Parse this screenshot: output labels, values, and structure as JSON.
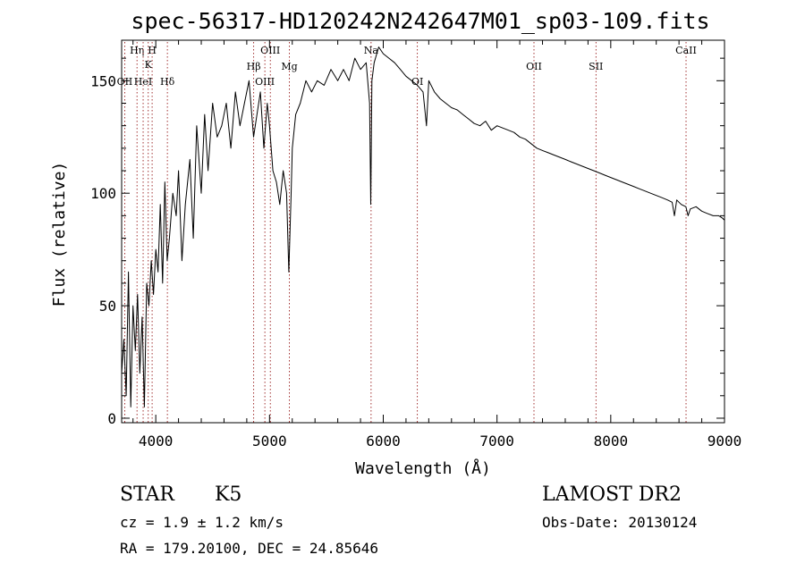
{
  "chart_data": {
    "type": "line",
    "title": "spec-56317-HD120242N242647M01_sp03-109.fits",
    "xlabel": "Wavelength (Å)",
    "ylabel": "Flux (relative)",
    "xlim": [
      3700,
      9000
    ],
    "ylim": [
      -2,
      168
    ],
    "x_ticks": [
      4000,
      5000,
      6000,
      7000,
      8000,
      9000
    ],
    "y_ticks": [
      0,
      50,
      100,
      150
    ],
    "series": [
      {
        "x": [
          3700,
          3720,
          3740,
          3760,
          3780,
          3800,
          3820,
          3840,
          3860,
          3880,
          3900,
          3920,
          3940,
          3960,
          3980,
          4000,
          4020,
          4040,
          4060,
          4080,
          4100,
          4120,
          4150,
          4180,
          4200,
          4230,
          4260,
          4300,
          4330,
          4360,
          4400,
          4430,
          4460,
          4500,
          4540,
          4580,
          4620,
          4660,
          4700,
          4740,
          4780,
          4820,
          4860,
          4890,
          4920,
          4950,
          4980,
          5000,
          5030,
          5060,
          5090,
          5120,
          5150,
          5170,
          5190,
          5200,
          5230,
          5270,
          5320,
          5370,
          5420,
          5480,
          5540,
          5600,
          5650,
          5700,
          5750,
          5800,
          5850,
          5880,
          5890,
          5900,
          5920,
          5960,
          6000,
          6050,
          6100,
          6150,
          6200,
          6250,
          6300,
          6350,
          6380,
          6400,
          6450,
          6500,
          6550,
          6600,
          6650,
          6700,
          6750,
          6800,
          6850,
          6900,
          6950,
          7000,
          7050,
          7100,
          7150,
          7200,
          7250,
          7300,
          7350,
          7400,
          7450,
          7500,
          7550,
          7600,
          7650,
          7700,
          7750,
          7800,
          7850,
          7900,
          7950,
          8000,
          8050,
          8100,
          8150,
          8200,
          8250,
          8300,
          8350,
          8400,
          8450,
          8500,
          8540,
          8560,
          8580,
          8600,
          8620,
          8660,
          8680,
          8700,
          8750,
          8800,
          8850,
          8900,
          8950,
          8980,
          9000
        ],
        "y": [
          20,
          35,
          10,
          65,
          5,
          50,
          30,
          55,
          20,
          45,
          5,
          60,
          50,
          70,
          55,
          75,
          65,
          95,
          60,
          105,
          70,
          80,
          100,
          90,
          110,
          70,
          95,
          115,
          80,
          130,
          100,
          135,
          110,
          140,
          125,
          130,
          140,
          120,
          145,
          130,
          140,
          150,
          125,
          135,
          145,
          120,
          140,
          130,
          110,
          105,
          95,
          110,
          100,
          65,
          100,
          120,
          135,
          140,
          150,
          145,
          150,
          148,
          155,
          150,
          155,
          150,
          160,
          155,
          158,
          140,
          95,
          150,
          158,
          165,
          162,
          160,
          158,
          155,
          152,
          150,
          148,
          145,
          130,
          150,
          145,
          142,
          140,
          138,
          137,
          135,
          133,
          131,
          130,
          132,
          128,
          130,
          129,
          128,
          127,
          125,
          124,
          122,
          120,
          119,
          118,
          117,
          116,
          115,
          114,
          113,
          112,
          111,
          110,
          109,
          108,
          107,
          106,
          105,
          104,
          103,
          102,
          101,
          100,
          99,
          98,
          97,
          96,
          90,
          97,
          96,
          95,
          94,
          90,
          93,
          94,
          92,
          91,
          90,
          90,
          89,
          88
        ]
      }
    ],
    "line_markers": [
      {
        "label": "Hη",
        "x": 3835,
        "row": 0
      },
      {
        "label": "H",
        "x": 3968,
        "row": 0
      },
      {
        "label": "K",
        "x": 3934,
        "row": 1
      },
      {
        "label": "OII",
        "x": 3727,
        "row": 3
      },
      {
        "label": "HeI",
        "x": 3889,
        "row": 3
      },
      {
        "label": "Hδ",
        "x": 4102,
        "row": 3
      },
      {
        "label": "OIII",
        "x": 5007,
        "row": 0
      },
      {
        "label": "Hβ",
        "x": 4861,
        "row": 2
      },
      {
        "label": "OIII",
        "x": 4959,
        "row": 3
      },
      {
        "label": "Mg",
        "x": 5175,
        "row": 2
      },
      {
        "label": "Na",
        "x": 5893,
        "row": 0
      },
      {
        "label": "OI",
        "x": 6300,
        "row": 3
      },
      {
        "label": "OII",
        "x": 7325,
        "row": 2
      },
      {
        "label": "SII",
        "x": 7870,
        "row": 2
      },
      {
        "label": "CaII",
        "x": 8662,
        "row": 0
      }
    ]
  },
  "info": {
    "object_class": "STAR",
    "subclass": "K5",
    "survey": "LAMOST DR2",
    "cz": "cz = 1.9 ± 1.2 km/s",
    "obs_date": "Obs-Date: 20130124",
    "coords": "RA = 179.20100, DEC =  24.85646"
  },
  "colors": {
    "marker_line": "#8b0000",
    "spectrum": "#000000"
  }
}
